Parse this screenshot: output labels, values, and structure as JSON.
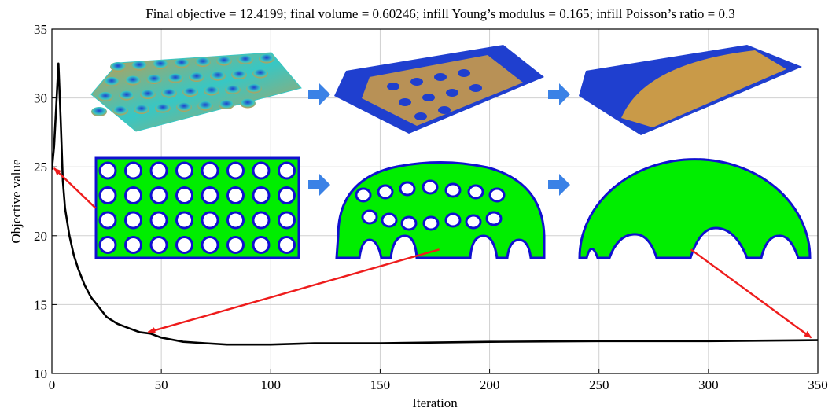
{
  "chart_data": {
    "type": "line",
    "title": "Final objective = 12.4199; final volume = 0.60246; infill Young’s modulus = 0.165; infill Poisson’s ratio = 0.3",
    "xlabel": "Iteration",
    "ylabel": "Objective value",
    "xlim": [
      0,
      350
    ],
    "ylim": [
      10,
      35
    ],
    "xticks": [
      0,
      50,
      100,
      150,
      200,
      250,
      300,
      350
    ],
    "yticks": [
      10,
      15,
      20,
      25,
      30,
      35
    ],
    "grid": true,
    "series": [
      {
        "color": "#000000",
        "x": [
          0,
          1,
          2,
          3,
          4,
          5,
          6,
          8,
          10,
          12,
          15,
          18,
          20,
          25,
          30,
          35,
          40,
          45,
          50,
          60,
          70,
          80,
          90,
          100,
          120,
          150,
          200,
          250,
          300,
          350
        ],
        "y": [
          24.8,
          26.5,
          29.5,
          32.5,
          28.5,
          24.0,
          22.0,
          20.0,
          18.6,
          17.6,
          16.4,
          15.5,
          15.1,
          14.1,
          13.6,
          13.3,
          13.0,
          12.9,
          12.6,
          12.3,
          12.2,
          12.1,
          12.1,
          12.1,
          12.2,
          12.2,
          12.3,
          12.35,
          12.35,
          12.42
        ]
      }
    ],
    "annotation_arrows": [
      {
        "from": [
          20,
          22.0
        ],
        "to": [
          1,
          24.9
        ]
      },
      {
        "from": [
          177,
          19.0
        ],
        "to": [
          44,
          13.0
        ]
      },
      {
        "from": [
          292,
          19.0
        ],
        "to": [
          347,
          12.6
        ]
      }
    ],
    "arrow_color": "#ee1c1c",
    "insets": {
      "surface_colors": {
        "low": "#1f3fcf",
        "mid": "#37c7c4",
        "high": "#c99a48"
      },
      "shape_fill": "#00ee00",
      "shape_outline": "#1010d0",
      "step_arrow_color": "#3b82e6"
    }
  }
}
